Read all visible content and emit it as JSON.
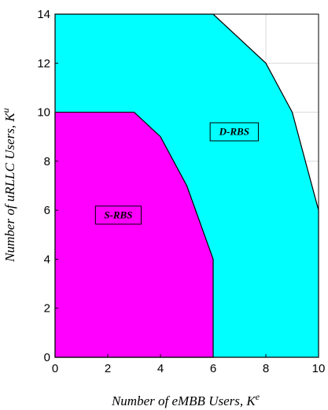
{
  "chart_data": {
    "type": "area",
    "title": "",
    "xlabel": {
      "base": "Number of eMBB Users, K",
      "sup": "e"
    },
    "ylabel": {
      "base": "Number of uRLLC Users, K",
      "sup": "u"
    },
    "xlim": [
      0,
      10
    ],
    "ylim": [
      0,
      14
    ],
    "xticks": [
      0,
      2,
      4,
      6,
      8,
      10
    ],
    "yticks": [
      0,
      2,
      4,
      6,
      8,
      10,
      12,
      14
    ],
    "grid": true,
    "series": [
      {
        "name": "D-RBS",
        "color": "#00ffff",
        "boundary": [
          {
            "x": 0,
            "y": 14
          },
          {
            "x": 6,
            "y": 14
          },
          {
            "x": 8,
            "y": 12
          },
          {
            "x": 9,
            "y": 10
          },
          {
            "x": 10,
            "y": 6
          },
          {
            "x": 10,
            "y": 0
          }
        ],
        "label_at": {
          "x": 6.8,
          "y": 9.2
        }
      },
      {
        "name": "S-RBS",
        "color": "#ff00ff",
        "boundary": [
          {
            "x": 0,
            "y": 10
          },
          {
            "x": 3,
            "y": 10
          },
          {
            "x": 4,
            "y": 9
          },
          {
            "x": 5,
            "y": 7
          },
          {
            "x": 6,
            "y": 4
          },
          {
            "x": 6,
            "y": 0
          }
        ],
        "label_at": {
          "x": 2.4,
          "y": 5.8
        }
      }
    ]
  }
}
